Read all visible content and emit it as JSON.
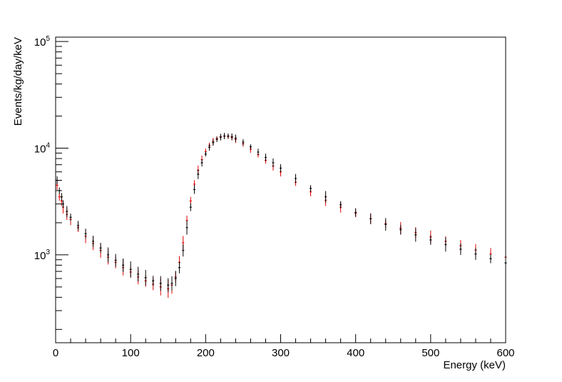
{
  "chart_data": {
    "type": "scatter",
    "title": "",
    "xlabel": "Energy (keV)",
    "ylabel": "Events/kg/day/keV",
    "xlim": [
      0,
      600
    ],
    "ylim": [
      150,
      110000
    ],
    "yscale": "log",
    "grid": false,
    "legend": "none",
    "x_ticks": [
      {
        "value": 0,
        "label": "0"
      },
      {
        "value": 100,
        "label": "100"
      },
      {
        "value": 200,
        "label": "200"
      },
      {
        "value": 300,
        "label": "300"
      },
      {
        "value": 400,
        "label": "400"
      },
      {
        "value": 500,
        "label": "500"
      },
      {
        "value": 600,
        "label": "600"
      }
    ],
    "y_ticks": [
      {
        "value": 1000,
        "base": "10",
        "exp": "3"
      },
      {
        "value": 10000,
        "base": "10",
        "exp": "4"
      },
      {
        "value": 100000,
        "base": "10",
        "exp": "5"
      }
    ],
    "series": [
      {
        "color": "#e00000",
        "points": [
          [
            2,
            4500
          ],
          [
            5,
            3500
          ],
          [
            8,
            3200
          ],
          [
            10,
            2800
          ],
          [
            15,
            2400
          ],
          [
            20,
            2150
          ],
          [
            30,
            1800
          ],
          [
            40,
            1500
          ],
          [
            50,
            1280
          ],
          [
            60,
            1100
          ],
          [
            70,
            950
          ],
          [
            80,
            850
          ],
          [
            90,
            760
          ],
          [
            100,
            690
          ],
          [
            110,
            620
          ],
          [
            120,
            570
          ],
          [
            130,
            530
          ],
          [
            140,
            500
          ],
          [
            150,
            480
          ],
          [
            155,
            520
          ],
          [
            160,
            620
          ],
          [
            165,
            850
          ],
          [
            170,
            1300
          ],
          [
            175,
            2100
          ],
          [
            180,
            3200
          ],
          [
            185,
            4600
          ],
          [
            190,
            6200
          ],
          [
            195,
            7800
          ],
          [
            200,
            9300
          ],
          [
            205,
            10600
          ],
          [
            210,
            11600
          ],
          [
            215,
            12300
          ],
          [
            220,
            12800
          ],
          [
            225,
            13000
          ],
          [
            230,
            12900
          ],
          [
            235,
            12600
          ],
          [
            240,
            12100
          ],
          [
            250,
            11000
          ],
          [
            260,
            9800
          ],
          [
            270,
            8700
          ],
          [
            280,
            7700
          ],
          [
            290,
            6800
          ],
          [
            300,
            6000
          ],
          [
            320,
            4800
          ],
          [
            340,
            3900
          ],
          [
            360,
            3250
          ],
          [
            380,
            2800
          ],
          [
            400,
            2450
          ],
          [
            420,
            2180
          ],
          [
            440,
            1960
          ],
          [
            460,
            1780
          ],
          [
            480,
            1620
          ],
          [
            500,
            1470
          ],
          [
            520,
            1340
          ],
          [
            540,
            1220
          ],
          [
            560,
            1110
          ],
          [
            580,
            1020
          ],
          [
            600,
            950
          ]
        ]
      },
      {
        "color": "#000000",
        "points": [
          [
            2,
            5000
          ],
          [
            5,
            4000
          ],
          [
            8,
            3500
          ],
          [
            10,
            3000
          ],
          [
            15,
            2550
          ],
          [
            20,
            2250
          ],
          [
            30,
            1880
          ],
          [
            40,
            1580
          ],
          [
            50,
            1340
          ],
          [
            60,
            1160
          ],
          [
            70,
            1000
          ],
          [
            80,
            890
          ],
          [
            90,
            800
          ],
          [
            100,
            730
          ],
          [
            110,
            660
          ],
          [
            120,
            610
          ],
          [
            130,
            570
          ],
          [
            140,
            540
          ],
          [
            150,
            520
          ],
          [
            155,
            540
          ],
          [
            160,
            600
          ],
          [
            165,
            760
          ],
          [
            170,
            1100
          ],
          [
            175,
            1800
          ],
          [
            180,
            2800
          ],
          [
            185,
            4100
          ],
          [
            190,
            5700
          ],
          [
            195,
            7300
          ],
          [
            200,
            8800
          ],
          [
            205,
            10200
          ],
          [
            210,
            11300
          ],
          [
            215,
            12100
          ],
          [
            220,
            12700
          ],
          [
            225,
            13000
          ],
          [
            230,
            13000
          ],
          [
            235,
            12800
          ],
          [
            240,
            12400
          ],
          [
            250,
            11400
          ],
          [
            260,
            10300
          ],
          [
            270,
            9200
          ],
          [
            280,
            8200
          ],
          [
            290,
            7300
          ],
          [
            300,
            6500
          ],
          [
            320,
            5200
          ],
          [
            340,
            4200
          ],
          [
            360,
            3500
          ],
          [
            380,
            2950
          ],
          [
            400,
            2500
          ],
          [
            420,
            2180
          ],
          [
            440,
            1930
          ],
          [
            460,
            1720
          ],
          [
            480,
            1540
          ],
          [
            500,
            1380
          ],
          [
            520,
            1250
          ],
          [
            540,
            1130
          ],
          [
            560,
            1020
          ],
          [
            580,
            920
          ],
          [
            600,
            840
          ]
        ]
      }
    ]
  }
}
